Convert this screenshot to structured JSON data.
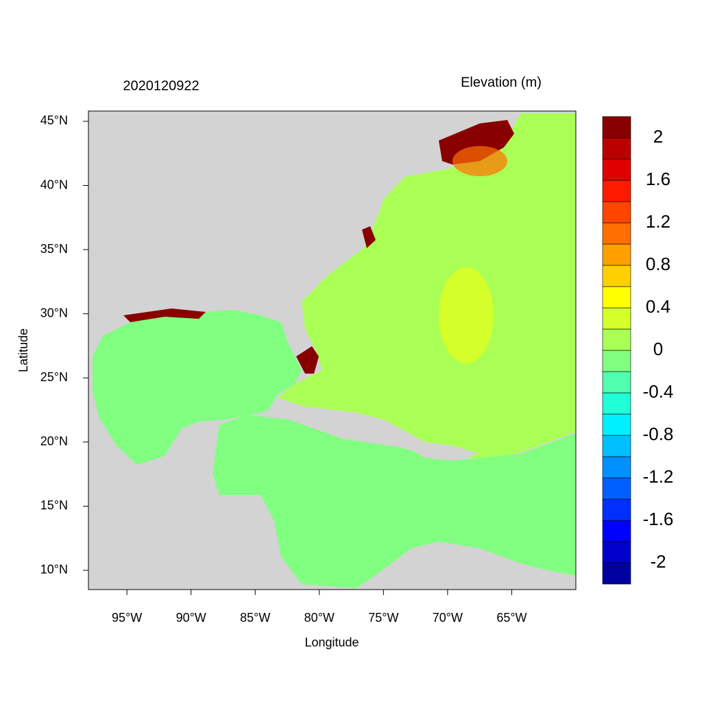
{
  "chart_data": {
    "type": "map",
    "title": "2020120922",
    "legend_title": "Elevation (m)",
    "x_label": "Longitude",
    "y_label": "Latitude",
    "xlim": [
      -98,
      -60
    ],
    "ylim": [
      8.5,
      45.8
    ],
    "xticks": [
      {
        "value": -95,
        "label": "95°W"
      },
      {
        "value": -90,
        "label": "90°W"
      },
      {
        "value": -85,
        "label": "85°W"
      },
      {
        "value": -80,
        "label": "80°W"
      },
      {
        "value": -75,
        "label": "75°W"
      },
      {
        "value": -70,
        "label": "70°W"
      },
      {
        "value": -65,
        "label": "65°W"
      }
    ],
    "yticks": [
      {
        "value": 10,
        "label": "10°N"
      },
      {
        "value": 15,
        "label": "15°N"
      },
      {
        "value": 20,
        "label": "20°N"
      },
      {
        "value": 25,
        "label": "25°N"
      },
      {
        "value": 30,
        "label": "30°N"
      },
      {
        "value": 35,
        "label": "35°N"
      },
      {
        "value": 40,
        "label": "40°N"
      },
      {
        "value": 45,
        "label": "45°N"
      }
    ],
    "clim": [
      -2.2,
      2.2
    ],
    "colorbar_ticks": [
      -2,
      -1.6,
      -1.2,
      -0.8,
      -0.4,
      0,
      0.4,
      0.8,
      1.2,
      1.6,
      2
    ],
    "colors": [
      "#0000a0",
      "#0000cd",
      "#0000ff",
      "#0030ff",
      "#0060ff",
      "#0090ff",
      "#00c0ff",
      "#00f0ff",
      "#20ffd8",
      "#50ffb0",
      "#80ff80",
      "#aaff55",
      "#d5ff2a",
      "#ffff00",
      "#ffd000",
      "#ffa000",
      "#ff7000",
      "#ff4500",
      "#ff1a00",
      "#e00000",
      "#bb0000",
      "#880000"
    ]
  }
}
